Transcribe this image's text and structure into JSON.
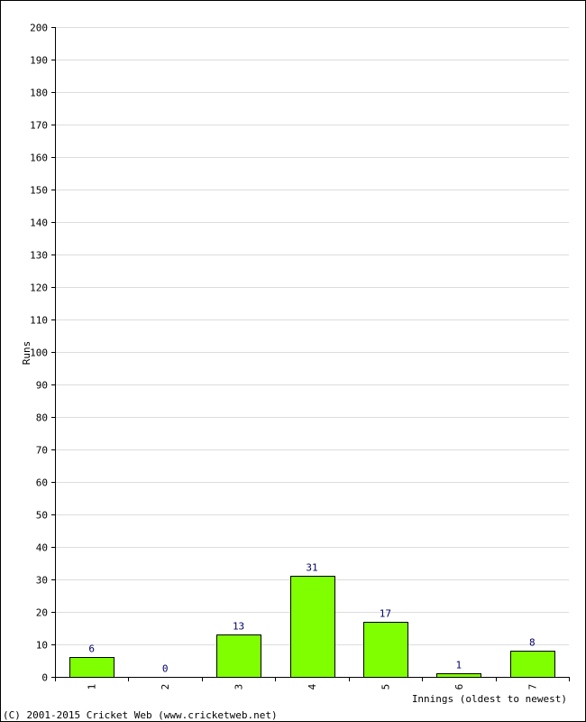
{
  "chart_data": {
    "type": "bar",
    "categories": [
      "1",
      "2",
      "3",
      "4",
      "5",
      "6",
      "7"
    ],
    "values": [
      6,
      0,
      13,
      31,
      17,
      1,
      8
    ],
    "data_labels": [
      "6",
      "0",
      "13",
      "31",
      "17",
      "1",
      "8"
    ],
    "title": "",
    "xlabel": "Innings (oldest to newest)",
    "ylabel": "Runs",
    "ylim": [
      0,
      200
    ],
    "y_ticks": [
      0,
      10,
      20,
      30,
      40,
      50,
      60,
      70,
      80,
      90,
      100,
      110,
      120,
      130,
      140,
      150,
      160,
      170,
      180,
      190,
      200
    ],
    "grid": true,
    "bar_color": "#80ff00",
    "bar_border_color": "#000000",
    "grid_color": "#dddddd",
    "data_label_color": "#000066"
  },
  "footer": {
    "copyright": "(C) 2001-2015 Cricket Web (www.cricketweb.net)"
  }
}
